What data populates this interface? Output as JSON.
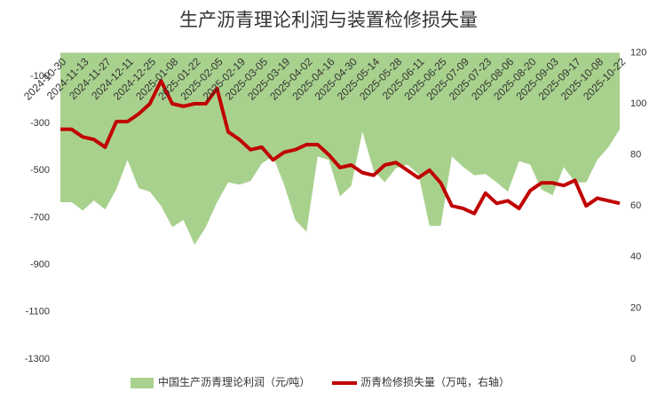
{
  "chart_data": {
    "type": "area-line",
    "title": "生产沥青理论利润与装置检修损失量",
    "categories": [
      "2024-10-30",
      null,
      "2024-11-13",
      null,
      "2024-11-27",
      null,
      "2024-12-11",
      null,
      "2024-12-25",
      null,
      "2025-01-08",
      null,
      "2025-01-22",
      null,
      "2025-02-05",
      null,
      "2025-02-19",
      null,
      "2025-03-05",
      null,
      "2025-03-19",
      null,
      "2025-04-02",
      null,
      "2025-04-16",
      null,
      "2025-04-30",
      null,
      "2025-05-14",
      null,
      "2025-05-28",
      null,
      "2025-06-11",
      null,
      "2025-06-25",
      null,
      "2025-07-09",
      null,
      "2025-07-23",
      null,
      "2025-08-06",
      null,
      "2025-08-20",
      null,
      "2025-09-03",
      null,
      "2025-09-17",
      null,
      "2025-10-08",
      null,
      "2025-10-22"
    ],
    "series": [
      {
        "name": "中国生产沥青理论利润（元/吨）",
        "type": "area",
        "color": "#a9d18e",
        "values": [
          -634,
          -634,
          -670,
          -627,
          -665,
          -580,
          -455,
          -575,
          -590,
          -650,
          -740,
          -710,
          -815,
          -740,
          -635,
          -550,
          -560,
          -545,
          -470,
          -440,
          -560,
          -710,
          -760,
          -440,
          -455,
          -610,
          -565,
          -335,
          -500,
          -550,
          -490,
          -475,
          -515,
          -735,
          -735,
          -440,
          -485,
          -520,
          -515,
          -550,
          -590,
          -460,
          -475,
          -580,
          -605,
          -485,
          -550,
          -550,
          -455,
          -400,
          -325
        ]
      },
      {
        "name": "沥青检修损失量（万吨，右轴）",
        "type": "line",
        "axis": "y2",
        "color": "#c00000",
        "values": [
          90,
          90,
          87,
          86,
          83,
          93,
          93,
          96,
          100,
          109,
          100,
          99,
          100,
          100,
          106,
          89,
          86,
          82,
          83,
          78,
          81,
          82,
          84,
          84,
          80,
          75,
          76,
          73,
          72,
          76,
          77,
          74,
          71,
          74,
          69,
          60,
          59,
          57,
          65,
          61,
          62,
          59,
          66,
          69,
          69,
          68,
          70,
          60,
          63,
          62,
          61
        ]
      }
    ],
    "ylim": [
      -1300,
      0
    ],
    "yticks": [
      -100,
      -300,
      -500,
      -700,
      -900,
      -1100,
      -1300
    ],
    "y2lim": [
      0,
      120
    ],
    "y2ticks": [
      0,
      20,
      40,
      60,
      80,
      100,
      120
    ],
    "legend": "bottom"
  }
}
